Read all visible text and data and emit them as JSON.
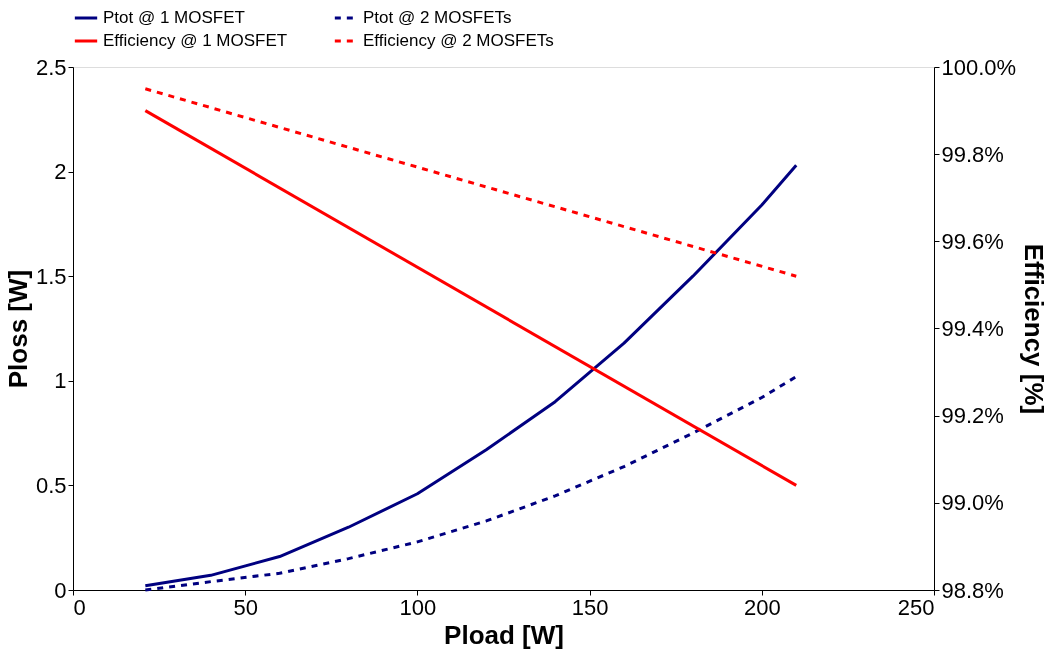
{
  "chart_data": {
    "type": "line",
    "xlabel": "Pload [W]",
    "ylabel": "Ploss [W]",
    "y2label": "Efficiency [%]",
    "xlim": [
      0,
      250
    ],
    "xticks": [
      0,
      50,
      100,
      150,
      200,
      250
    ],
    "ylim": [
      0,
      2.5
    ],
    "yticks": [
      0,
      0.5,
      1,
      1.5,
      2,
      2.5
    ],
    "y2lim": [
      98.8,
      100.0
    ],
    "y2ticks": [
      {
        "value": 98.8,
        "label": "98.8%"
      },
      {
        "value": 99.0,
        "label": "99.0%"
      },
      {
        "value": 99.2,
        "label": "99.2%"
      },
      {
        "value": 99.4,
        "label": "99.4%"
      },
      {
        "value": 99.6,
        "label": "99.6%"
      },
      {
        "value": 99.8,
        "label": "99.8%"
      },
      {
        "value": 100.0,
        "label": "100.0%"
      }
    ],
    "grid": false,
    "legend": "top",
    "marker": "none",
    "series": [
      {
        "name": "Ptot @ 1 MOSFET",
        "color": "#000080",
        "line_style": "solid",
        "x": [
          21,
          40,
          60,
          80,
          100,
          120,
          140,
          160,
          180,
          200,
          210
        ],
        "values": [
          0.02,
          0.07,
          0.16,
          0.3,
          0.46,
          0.67,
          0.9,
          1.18,
          1.5,
          1.84,
          2.03
        ]
      },
      {
        "name": "Ptot @ 2 MOSFETs",
        "color": "#000080",
        "line_style": "dashed",
        "x": [
          21,
          40,
          60,
          80,
          100,
          120,
          140,
          160,
          180,
          200,
          210
        ],
        "values": [
          0.0,
          0.04,
          0.08,
          0.15,
          0.23,
          0.33,
          0.45,
          0.59,
          0.75,
          0.92,
          1.02
        ]
      },
      {
        "name": "Efficiency @ 1 MOSFET",
        "color": "#ff0000",
        "line_style": "solid",
        "axis": "y2",
        "x": [
          21,
          210
        ],
        "values": [
          99.9,
          99.04
        ]
      },
      {
        "name": "Efficiency @ 2 MOSFETs",
        "color": "#ff0000",
        "line_style": "dashed",
        "axis": "y2",
        "x": [
          21,
          210
        ],
        "values": [
          99.95,
          99.52
        ]
      }
    ]
  }
}
